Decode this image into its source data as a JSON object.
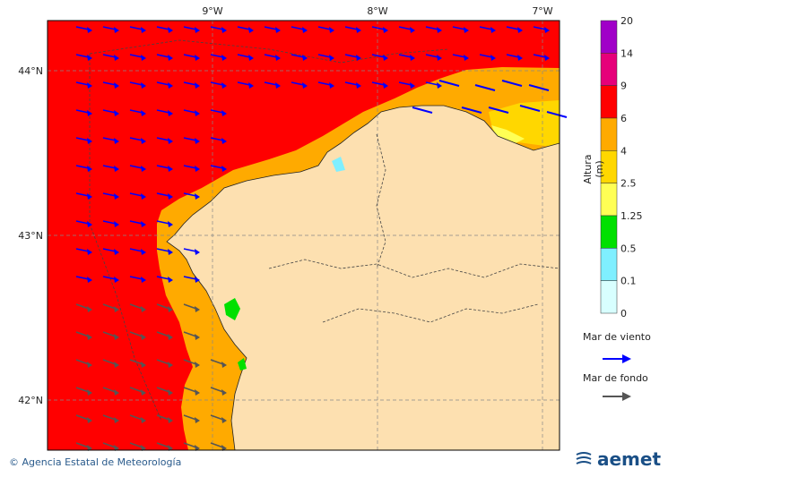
{
  "map": {
    "lon_labels": [
      "9°W",
      "8°W",
      "7°W"
    ],
    "lat_labels": [
      "44°N",
      "43°N",
      "42°N"
    ]
  },
  "legend": {
    "title": "Altura (m)",
    "levels": [
      {
        "label": "20",
        "color": "#a000c8"
      },
      {
        "label": "14",
        "color": "#e6007a"
      },
      {
        "label": "9",
        "color": "#ff0000"
      },
      {
        "label": "6",
        "color": "#ffaa00"
      },
      {
        "label": "4",
        "color": "#ffd700"
      },
      {
        "label": "2.5",
        "color": "#ffff55"
      },
      {
        "label": "1.25",
        "color": "#00e000"
      },
      {
        "label": "0.5",
        "color": "#7fefff"
      },
      {
        "label": "0.1",
        "color": "#d8ffff"
      },
      {
        "label": "0",
        "color": ""
      }
    ]
  },
  "annotations": {
    "wind_sea": "Mar de viento",
    "swell": "Mar de fondo"
  },
  "footer": {
    "copyright": "© Agencia Estatal de Meteorología",
    "logo": "aemet"
  },
  "colors": {
    "sea_red": "#ff0000",
    "coast_orange": "#ffaa00",
    "land": "#fde0b0",
    "wind_arrow": "#0000ff",
    "swell_arrow": "#555555"
  }
}
